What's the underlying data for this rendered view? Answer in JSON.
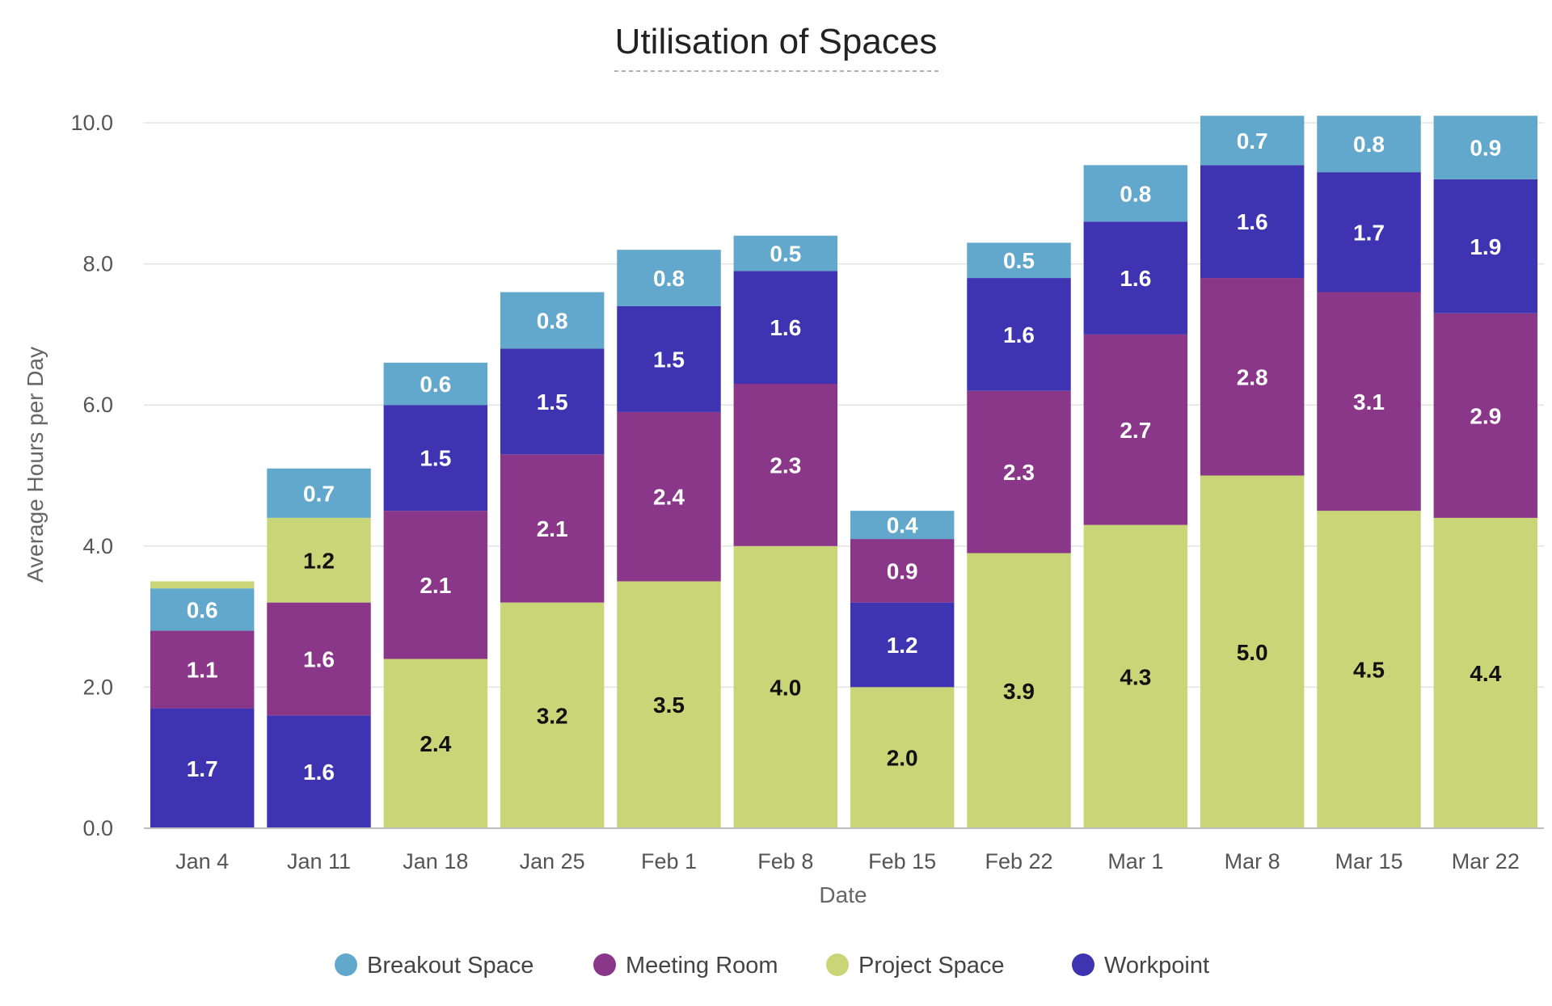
{
  "chart_data": {
    "type": "bar",
    "stacked": true,
    "title": "Utilisation of Spaces",
    "xlabel": "Date",
    "ylabel": "Average Hours per Day",
    "ylim": [
      0,
      10
    ],
    "yticks": [
      "0.0",
      "2.0",
      "4.0",
      "6.0",
      "8.0",
      "10.0"
    ],
    "grid": true,
    "legend_position": "bottom",
    "categories": [
      "Jan 4",
      "Jan 11",
      "Jan 18",
      "Jan 25",
      "Feb 1",
      "Feb 8",
      "Feb 15",
      "Feb 22",
      "Mar 1",
      "Mar 8",
      "Mar 15",
      "Mar 22"
    ],
    "series": [
      {
        "name": "Breakout Space",
        "color": "#62a8cc",
        "label_color": "#ffffff",
        "values": [
          0.6,
          0.7,
          0.6,
          0.8,
          0.8,
          0.5,
          0.4,
          0.5,
          0.8,
          0.7,
          0.8,
          0.9
        ]
      },
      {
        "name": "Meeting Room",
        "color": "#8a3689",
        "label_color": "#ffffff",
        "values": [
          1.1,
          1.6,
          2.1,
          2.1,
          2.4,
          2.3,
          0.9,
          2.3,
          2.7,
          2.8,
          3.1,
          2.9
        ]
      },
      {
        "name": "Project Space",
        "color": "#c9d677",
        "label_color": "#111111",
        "values": [
          0.1,
          1.2,
          2.4,
          3.2,
          3.5,
          4.0,
          2.0,
          3.9,
          4.3,
          5.0,
          4.5,
          4.4
        ]
      },
      {
        "name": "Workpoint",
        "color": "#3e33b0",
        "label_color": "#ffffff",
        "values": [
          1.7,
          1.6,
          1.5,
          1.5,
          1.5,
          1.6,
          1.2,
          1.6,
          1.6,
          1.6,
          1.7,
          1.9
        ]
      }
    ],
    "stack_order_bottom_to_top": [
      [
        "Workpoint",
        "Meeting Room",
        "Breakout Space",
        "Project Space"
      ],
      [
        "Workpoint",
        "Meeting Room",
        "Project Space",
        "Breakout Space"
      ],
      [
        "Project Space",
        "Meeting Room",
        "Workpoint",
        "Breakout Space"
      ],
      [
        "Project Space",
        "Meeting Room",
        "Workpoint",
        "Breakout Space"
      ],
      [
        "Project Space",
        "Meeting Room",
        "Workpoint",
        "Breakout Space"
      ],
      [
        "Project Space",
        "Meeting Room",
        "Workpoint",
        "Breakout Space"
      ],
      [
        "Project Space",
        "Workpoint",
        "Meeting Room",
        "Breakout Space"
      ],
      [
        "Project Space",
        "Meeting Room",
        "Workpoint",
        "Breakout Space"
      ],
      [
        "Project Space",
        "Meeting Room",
        "Workpoint",
        "Breakout Space"
      ],
      [
        "Project Space",
        "Meeting Room",
        "Workpoint",
        "Breakout Space"
      ],
      [
        "Project Space",
        "Meeting Room",
        "Workpoint",
        "Breakout Space"
      ],
      [
        "Project Space",
        "Meeting Room",
        "Workpoint",
        "Breakout Space"
      ]
    ],
    "unlabeled_segments": [
      [
        0,
        "Project Space"
      ]
    ]
  }
}
